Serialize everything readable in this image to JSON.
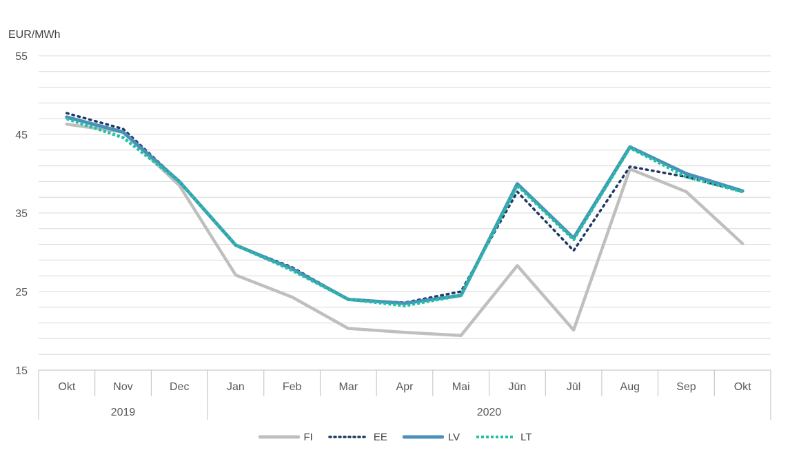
{
  "chart_data": {
    "type": "line",
    "ylabel": "EUR/MWh",
    "ylim": [
      15,
      55
    ],
    "yticks": [
      15,
      25,
      35,
      45,
      55
    ],
    "grid": true,
    "legend_position": "bottom",
    "categories": [
      "Okt",
      "Nov",
      "Dec",
      "Jan",
      "Feb",
      "Mar",
      "Apr",
      "Mai",
      "Jūn",
      "Jūl",
      "Aug",
      "Sep",
      "Okt"
    ],
    "year_groups": [
      {
        "label": "2019",
        "count": 3
      },
      {
        "label": "2020",
        "count": 10
      }
    ],
    "series": [
      {
        "name": "FI",
        "color": "#bfbfbf",
        "style": "solid",
        "values": [
          46.3,
          45.3,
          38.5,
          27.1,
          24.3,
          20.3,
          19.8,
          19.4,
          28.3,
          20.1,
          40.6,
          37.7,
          31.1
        ]
      },
      {
        "name": "EE",
        "color": "#1f3864",
        "style": "dotted",
        "values": [
          47.7,
          45.7,
          39.0,
          30.9,
          28.1,
          24.0,
          23.6,
          25.0,
          37.7,
          30.2,
          40.9,
          39.6,
          37.7
        ]
      },
      {
        "name": "LV",
        "color": "#4a90b8",
        "style": "solid",
        "values": [
          47.2,
          45.3,
          39.0,
          30.9,
          27.9,
          24.0,
          23.5,
          24.5,
          38.7,
          31.8,
          43.4,
          40.0,
          37.8
        ]
      },
      {
        "name": "LT",
        "color": "#1fc2a4",
        "style": "dotted",
        "values": [
          47.0,
          44.6,
          39.0,
          30.9,
          27.7,
          24.0,
          23.2,
          24.5,
          38.5,
          31.6,
          43.3,
          39.6,
          37.7
        ]
      }
    ]
  }
}
